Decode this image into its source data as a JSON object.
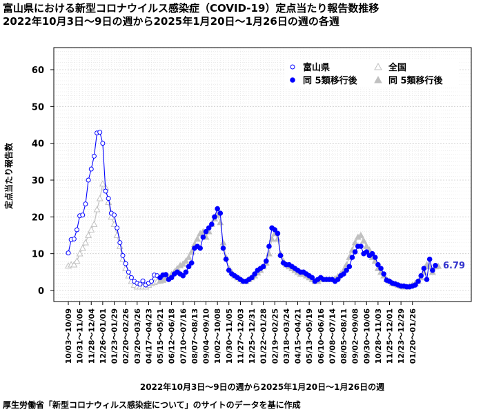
{
  "header": {
    "title_line1": "富山県における新型コロナウイルス感染症（COVID-19）定点当たり報告数推移",
    "title_line2": "2022年10月3日～9日の週から2025年1月20日～1月26日の週の各週"
  },
  "footer": {
    "source": "厚生労働省「新型コロナウィルス感染症について」のサイトのデータを基に作成"
  },
  "colors": {
    "toyama": "#0000ff",
    "national": "#c0c0c0",
    "grid": "#cccccc",
    "label": "#3333cc"
  },
  "chart_data": {
    "type": "line",
    "title": "富山県における新型コロナウイルス感染症（COVID-19）定点当たり報告数推移",
    "xlabel": "2022年10月3日～9日の週から2025年1月20日～1月26日の週",
    "ylabel": "定点当たり報告数",
    "ylim": [
      -3,
      66
    ],
    "yticks": [
      0,
      10,
      20,
      30,
      40,
      50,
      60
    ],
    "grid": true,
    "legend_position": "top-right",
    "legend": [
      "富山県",
      "全国",
      "同 5類移行後",
      "同 5類移行後"
    ],
    "x_tick_labels": [
      "10/03～10/09",
      "10/31～11/06",
      "11/28～12/04",
      "12/26～01/01",
      "01/23～01/29",
      "02/20～02/26",
      "03/20～03/26",
      "04/17～04/23",
      "05/15～05/21",
      "06/12～06/18",
      "07/10～07/16",
      "08/07～08/13",
      "09/04～09/10",
      "10/02～10/08",
      "10/30～11/05",
      "11/27～12/03",
      "12/25～12/31",
      "01/22～01/28",
      "02/19～02/25",
      "03/18～03/24",
      "04/15～04/21",
      "05/13～05/19",
      "06/10～06/16",
      "07/08～07/14",
      "08/05～08/11",
      "09/02～09/08",
      "09/30～10/06",
      "10/28～11/03",
      "11/25～12/01",
      "12/23～12/29",
      "01/20～01/26"
    ],
    "split_index": 32,
    "end_label": "6.79",
    "series": [
      {
        "name": "富山県",
        "values": [
          10.2,
          13.8,
          14,
          16.5,
          20.3,
          20.5,
          23.5,
          30,
          33,
          36.5,
          42.8,
          43,
          40,
          27,
          25,
          21,
          20.5,
          17,
          13,
          9.5,
          7.3,
          5,
          3.5,
          2.5,
          2,
          1.7,
          2.6,
          1.5,
          2,
          2.5,
          4.2,
          4,
          3.5,
          4.2,
          4.3,
          3,
          3.5,
          4.5,
          5,
          4.5,
          4,
          5,
          6.5,
          7.5,
          11.5,
          12,
          11.5,
          14.5,
          16,
          17,
          18,
          20,
          22.2,
          21,
          11.5,
          8.5,
          5.5,
          4.5,
          4,
          3.5,
          3,
          2.5,
          2.5,
          3,
          3.5,
          4.5,
          5.5,
          6,
          6.5,
          8,
          12,
          17,
          16.5,
          15.5,
          9.5,
          7.5,
          7,
          7,
          6.5,
          6,
          5.5,
          5,
          5,
          4.5,
          4,
          3.5,
          2.5,
          3,
          3.5,
          3,
          3,
          3,
          3,
          2.5,
          3,
          4,
          4.5,
          5.5,
          6.5,
          9,
          10.5,
          12,
          12,
          10,
          10.5,
          9.5,
          10,
          9,
          7,
          6,
          4.5,
          2.8,
          2.5,
          2,
          1.8,
          1.5,
          1.2,
          1.2,
          1,
          1,
          1.2,
          1.5,
          2.5,
          4,
          6,
          3,
          8.5,
          5.5,
          6.79
        ]
      },
      {
        "name": "全国",
        "values": [
          6.7,
          7,
          7,
          8,
          10,
          11.5,
          13,
          15,
          16.5,
          18,
          22,
          25,
          29,
          28,
          24,
          20,
          18,
          15,
          12,
          8.5,
          6,
          4,
          2.5,
          1.5,
          1,
          1,
          1,
          1,
          1.5,
          2,
          2.2,
          2.5,
          2.6,
          2.8,
          3.2,
          3.6,
          4.4,
          5.1,
          6,
          6.8,
          7.2,
          8,
          9,
          10.5,
          12.5,
          14,
          15.5,
          16,
          14.5,
          16,
          18,
          19.5,
          20.5,
          18.5,
          13,
          9,
          6,
          5,
          4,
          3.5,
          3,
          2.5,
          2.5,
          3,
          3.5,
          4,
          4.8,
          5.5,
          6.5,
          7.5,
          10,
          14,
          15.5,
          14,
          10,
          8,
          7,
          6.5,
          6,
          5.5,
          5,
          4.5,
          4.5,
          4,
          3.5,
          3,
          2.5,
          2.5,
          3,
          3,
          3,
          3,
          3,
          3.2,
          3.8,
          4.5,
          5.5,
          7,
          9,
          11,
          13,
          14.5,
          15,
          13.5,
          12,
          11,
          9,
          8,
          6,
          5,
          4,
          3,
          2.5,
          2,
          1.8,
          1.5,
          1.2,
          1,
          1,
          1.2,
          1.5,
          2,
          2.5,
          3.5,
          5,
          7,
          6.5,
          5,
          6.5,
          6.6
        ]
      }
    ]
  }
}
